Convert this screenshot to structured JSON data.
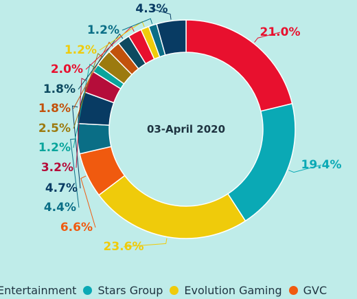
{
  "chart_data": {
    "type": "pie",
    "donut": true,
    "center_label": "03-April 2020",
    "slices": [
      {
        "label": "21.0%",
        "value": 21.0,
        "color": "#e8102e"
      },
      {
        "label": "19.4%",
        "value": 19.4,
        "color": "#0aa9b5"
      },
      {
        "label": "23.6%",
        "value": 23.6,
        "color": "#efcb0b"
      },
      {
        "label": "6.6%",
        "value": 6.6,
        "color": "#f05a0f"
      },
      {
        "label": "4.4%",
        "value": 4.4,
        "color": "#0a6e86"
      },
      {
        "label": "4.7%",
        "value": 4.7,
        "color": "#083b63"
      },
      {
        "label": "3.2%",
        "value": 3.2,
        "color": "#b50d3a"
      },
      {
        "label": "1.2%",
        "value": 1.2,
        "color": "#0aa59c"
      },
      {
        "label": "2.5%",
        "value": 2.5,
        "color": "#9c7a0f"
      },
      {
        "label": "1.8%",
        "value": 1.8,
        "color": "#c2520c"
      },
      {
        "label": "1.8%",
        "value": 1.8,
        "color": "#0d4a60"
      },
      {
        "label": "2.0%",
        "value": 2.0,
        "color": "#e8102e"
      },
      {
        "label": "1.2%",
        "value": 1.2,
        "color": "#efcb0b"
      },
      {
        "label": "1.2%",
        "value": 1.2,
        "color": "#0a6e86"
      },
      {
        "label": "4.3%",
        "value": 4.3,
        "color": "#083b63"
      }
    ],
    "legend": {
      "placement": "bottom",
      "items": [
        {
          "name": "Entertainment",
          "color": "#e8102e"
        },
        {
          "name": "Stars Group",
          "color": "#0aa9b5"
        },
        {
          "name": "Evolution Gaming",
          "color": "#efcb0b"
        },
        {
          "name": "GVC",
          "color": "#f05a0f"
        }
      ]
    }
  }
}
